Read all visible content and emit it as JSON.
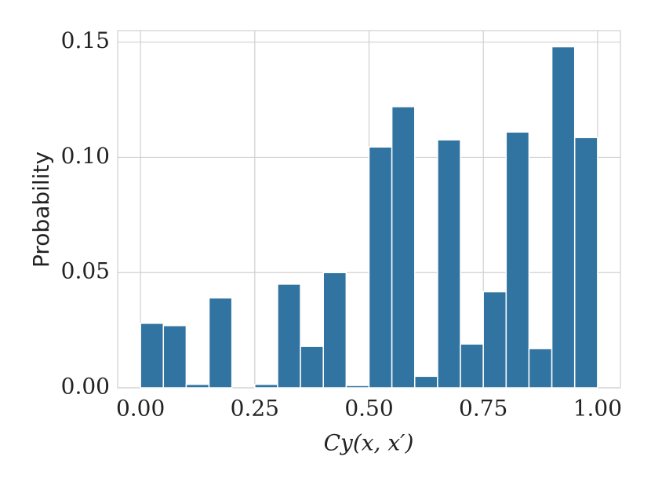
{
  "chart_data": {
    "type": "histogram",
    "xlabel": "Cy(x, x′)",
    "ylabel": "Probability",
    "bins": [
      0,
      0.05,
      0.1,
      0.15,
      0.2,
      0.25,
      0.3,
      0.35,
      0.4,
      0.45,
      0.5,
      0.55,
      0.6,
      0.65,
      0.7,
      0.75,
      0.8,
      0.85,
      0.9,
      0.95,
      1
    ],
    "values": [
      0.028,
      0.027,
      0.0015,
      0.039,
      0,
      0.0015,
      0.045,
      0.018,
      0.05,
      0.001,
      0.1045,
      0.122,
      0.005,
      0.1076,
      0.019,
      0.0417,
      0.111,
      0.017,
      0.148,
      0.1086
    ],
    "color": "#3274a1",
    "xlim": [
      -0.05,
      1.05
    ],
    "ylim": [
      0,
      0.155
    ],
    "xticks": [
      {
        "value": 0,
        "label": "0.00"
      },
      0.25,
      {
        "value": 0.5,
        "label": "0.50"
      },
      0.75,
      {
        "value": 1,
        "label": "1.00"
      }
    ],
    "yticks": [
      {
        "value": 0,
        "label": "0.00"
      },
      0.05,
      {
        "value": 0.1,
        "label": "0.10"
      },
      0.15
    ],
    "grid": true
  }
}
